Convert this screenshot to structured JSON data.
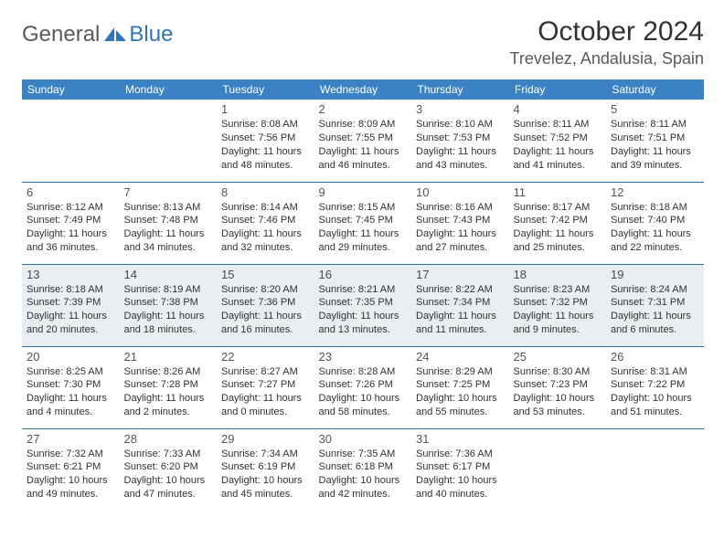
{
  "brand": {
    "part1": "General",
    "part2": "Blue"
  },
  "title": "October 2024",
  "location": "Trevelez, Andalusia, Spain",
  "colors": {
    "header_bg": "#3b82c4",
    "header_text": "#ffffff",
    "row_border": "#2e6da4",
    "shaded_bg": "#e9eef2",
    "text": "#323232",
    "brand_blue": "#2f76b8",
    "brand_gray": "#5a5a5a"
  },
  "typography": {
    "title_fontsize": 30,
    "location_fontsize": 18,
    "dayhead_fontsize": 12,
    "daynum_fontsize": 13,
    "info_fontsize": 11
  },
  "daynames": [
    "Sunday",
    "Monday",
    "Tuesday",
    "Wednesday",
    "Thursday",
    "Friday",
    "Saturday"
  ],
  "weeks": [
    [
      {
        "n": "",
        "lines": []
      },
      {
        "n": "",
        "lines": []
      },
      {
        "n": "1",
        "lines": [
          "Sunrise: 8:08 AM",
          "Sunset: 7:56 PM",
          "Daylight: 11 hours and 48 minutes."
        ]
      },
      {
        "n": "2",
        "lines": [
          "Sunrise: 8:09 AM",
          "Sunset: 7:55 PM",
          "Daylight: 11 hours and 46 minutes."
        ]
      },
      {
        "n": "3",
        "lines": [
          "Sunrise: 8:10 AM",
          "Sunset: 7:53 PM",
          "Daylight: 11 hours and 43 minutes."
        ]
      },
      {
        "n": "4",
        "lines": [
          "Sunrise: 8:11 AM",
          "Sunset: 7:52 PM",
          "Daylight: 11 hours and 41 minutes."
        ]
      },
      {
        "n": "5",
        "lines": [
          "Sunrise: 8:11 AM",
          "Sunset: 7:51 PM",
          "Daylight: 11 hours and 39 minutes."
        ]
      }
    ],
    [
      {
        "n": "6",
        "lines": [
          "Sunrise: 8:12 AM",
          "Sunset: 7:49 PM",
          "Daylight: 11 hours and 36 minutes."
        ]
      },
      {
        "n": "7",
        "lines": [
          "Sunrise: 8:13 AM",
          "Sunset: 7:48 PM",
          "Daylight: 11 hours and 34 minutes."
        ]
      },
      {
        "n": "8",
        "lines": [
          "Sunrise: 8:14 AM",
          "Sunset: 7:46 PM",
          "Daylight: 11 hours and 32 minutes."
        ]
      },
      {
        "n": "9",
        "lines": [
          "Sunrise: 8:15 AM",
          "Sunset: 7:45 PM",
          "Daylight: 11 hours and 29 minutes."
        ]
      },
      {
        "n": "10",
        "lines": [
          "Sunrise: 8:16 AM",
          "Sunset: 7:43 PM",
          "Daylight: 11 hours and 27 minutes."
        ]
      },
      {
        "n": "11",
        "lines": [
          "Sunrise: 8:17 AM",
          "Sunset: 7:42 PM",
          "Daylight: 11 hours and 25 minutes."
        ]
      },
      {
        "n": "12",
        "lines": [
          "Sunrise: 8:18 AM",
          "Sunset: 7:40 PM",
          "Daylight: 11 hours and 22 minutes."
        ]
      }
    ],
    [
      {
        "n": "13",
        "lines": [
          "Sunrise: 8:18 AM",
          "Sunset: 7:39 PM",
          "Daylight: 11 hours and 20 minutes."
        ]
      },
      {
        "n": "14",
        "lines": [
          "Sunrise: 8:19 AM",
          "Sunset: 7:38 PM",
          "Daylight: 11 hours and 18 minutes."
        ]
      },
      {
        "n": "15",
        "lines": [
          "Sunrise: 8:20 AM",
          "Sunset: 7:36 PM",
          "Daylight: 11 hours and 16 minutes."
        ]
      },
      {
        "n": "16",
        "lines": [
          "Sunrise: 8:21 AM",
          "Sunset: 7:35 PM",
          "Daylight: 11 hours and 13 minutes."
        ]
      },
      {
        "n": "17",
        "lines": [
          "Sunrise: 8:22 AM",
          "Sunset: 7:34 PM",
          "Daylight: 11 hours and 11 minutes."
        ]
      },
      {
        "n": "18",
        "lines": [
          "Sunrise: 8:23 AM",
          "Sunset: 7:32 PM",
          "Daylight: 11 hours and 9 minutes."
        ]
      },
      {
        "n": "19",
        "lines": [
          "Sunrise: 8:24 AM",
          "Sunset: 7:31 PM",
          "Daylight: 11 hours and 6 minutes."
        ]
      }
    ],
    [
      {
        "n": "20",
        "lines": [
          "Sunrise: 8:25 AM",
          "Sunset: 7:30 PM",
          "Daylight: 11 hours and 4 minutes."
        ]
      },
      {
        "n": "21",
        "lines": [
          "Sunrise: 8:26 AM",
          "Sunset: 7:28 PM",
          "Daylight: 11 hours and 2 minutes."
        ]
      },
      {
        "n": "22",
        "lines": [
          "Sunrise: 8:27 AM",
          "Sunset: 7:27 PM",
          "Daylight: 11 hours and 0 minutes."
        ]
      },
      {
        "n": "23",
        "lines": [
          "Sunrise: 8:28 AM",
          "Sunset: 7:26 PM",
          "Daylight: 10 hours and 58 minutes."
        ]
      },
      {
        "n": "24",
        "lines": [
          "Sunrise: 8:29 AM",
          "Sunset: 7:25 PM",
          "Daylight: 10 hours and 55 minutes."
        ]
      },
      {
        "n": "25",
        "lines": [
          "Sunrise: 8:30 AM",
          "Sunset: 7:23 PM",
          "Daylight: 10 hours and 53 minutes."
        ]
      },
      {
        "n": "26",
        "lines": [
          "Sunrise: 8:31 AM",
          "Sunset: 7:22 PM",
          "Daylight: 10 hours and 51 minutes."
        ]
      }
    ],
    [
      {
        "n": "27",
        "lines": [
          "Sunrise: 7:32 AM",
          "Sunset: 6:21 PM",
          "Daylight: 10 hours and 49 minutes."
        ]
      },
      {
        "n": "28",
        "lines": [
          "Sunrise: 7:33 AM",
          "Sunset: 6:20 PM",
          "Daylight: 10 hours and 47 minutes."
        ]
      },
      {
        "n": "29",
        "lines": [
          "Sunrise: 7:34 AM",
          "Sunset: 6:19 PM",
          "Daylight: 10 hours and 45 minutes."
        ]
      },
      {
        "n": "30",
        "lines": [
          "Sunrise: 7:35 AM",
          "Sunset: 6:18 PM",
          "Daylight: 10 hours and 42 minutes."
        ]
      },
      {
        "n": "31",
        "lines": [
          "Sunrise: 7:36 AM",
          "Sunset: 6:17 PM",
          "Daylight: 10 hours and 40 minutes."
        ]
      },
      {
        "n": "",
        "lines": []
      },
      {
        "n": "",
        "lines": []
      }
    ]
  ],
  "shaded_rows": [
    2
  ]
}
